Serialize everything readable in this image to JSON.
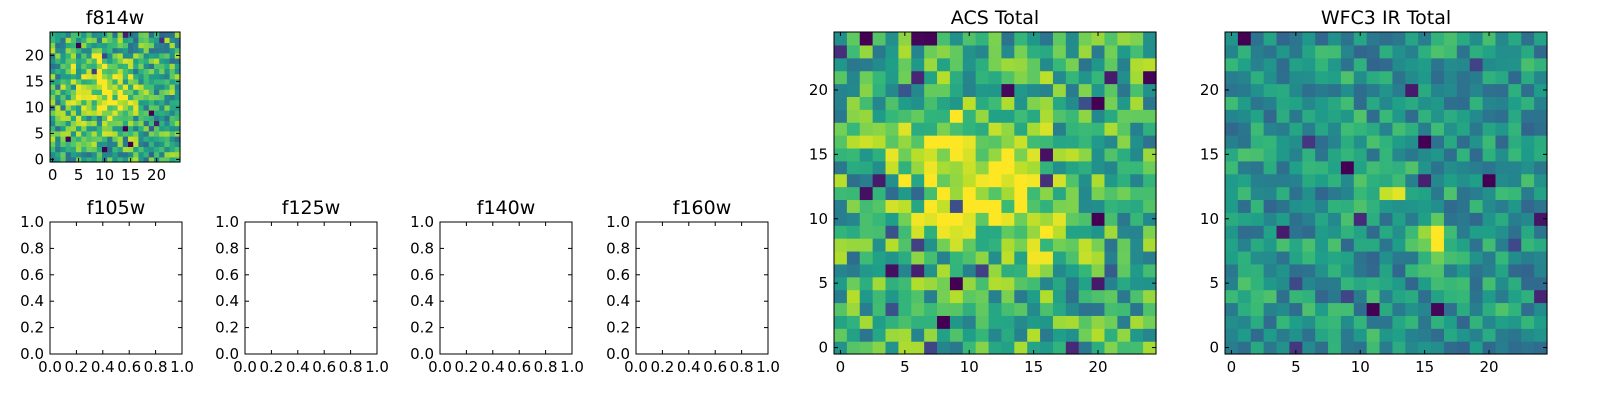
{
  "chart_data": [
    {
      "type": "heatmap",
      "title": "f814w",
      "xlim": [
        -0.5,
        24.5
      ],
      "ylim": [
        -0.5,
        24.5
      ],
      "xticks": [
        0,
        5,
        10,
        15,
        20
      ],
      "yticks": [
        0,
        5,
        10,
        15,
        20
      ],
      "grid_size": [
        25,
        25
      ],
      "seed": 11,
      "base": 0.62,
      "noise": 0.28,
      "features": [
        [
          11,
          12,
          4,
          0.28
        ],
        [
          7,
          17,
          3,
          0.15
        ]
      ],
      "colormap": "viridis"
    },
    {
      "type": "heatmap",
      "title": "ACS Total",
      "xlim": [
        -0.5,
        24.5
      ],
      "ylim": [
        -0.5,
        24.5
      ],
      "xticks": [
        0,
        5,
        10,
        15,
        20
      ],
      "yticks": [
        0,
        5,
        10,
        15,
        20
      ],
      "grid_size": [
        25,
        25
      ],
      "seed": 29,
      "base": 0.64,
      "noise": 0.26,
      "features": [
        [
          9,
          13,
          3.5,
          0.24
        ],
        [
          12,
          14,
          3,
          0.18
        ],
        [
          16,
          9,
          2,
          0.15
        ],
        [
          5,
          17,
          2,
          0.12
        ]
      ],
      "colormap": "viridis"
    },
    {
      "type": "heatmap",
      "title": "WFC3 IR Total",
      "xlim": [
        -0.5,
        24.5
      ],
      "ylim": [
        -0.5,
        24.5
      ],
      "xticks": [
        0,
        5,
        10,
        15,
        20
      ],
      "yticks": [
        0,
        5,
        10,
        15,
        20
      ],
      "grid_size": [
        25,
        25
      ],
      "seed": 53,
      "base": 0.52,
      "noise": 0.2,
      "features": [
        [
          15.5,
          8.5,
          1.0,
          0.45
        ],
        [
          12.5,
          12.5,
          1.0,
          0.35
        ]
      ],
      "colormap": "viridis"
    },
    {
      "type": "empty",
      "title": "f105w",
      "xlim": [
        0,
        1
      ],
      "ylim": [
        0,
        1
      ],
      "xticks": [
        "0.0",
        "0.2",
        "0.4",
        "0.6",
        "0.8",
        "1.0"
      ],
      "yticks": [
        "0.0",
        "0.2",
        "0.4",
        "0.6",
        "0.8",
        "1.0"
      ]
    },
    {
      "type": "empty",
      "title": "f125w",
      "xlim": [
        0,
        1
      ],
      "ylim": [
        0,
        1
      ],
      "xticks": [
        "0.0",
        "0.2",
        "0.4",
        "0.6",
        "0.8",
        "1.0"
      ],
      "yticks": [
        "0.0",
        "0.2",
        "0.4",
        "0.6",
        "0.8",
        "1.0"
      ]
    },
    {
      "type": "empty",
      "title": "f140w",
      "xlim": [
        0,
        1
      ],
      "ylim": [
        0,
        1
      ],
      "xticks": [
        "0.0",
        "0.2",
        "0.4",
        "0.6",
        "0.8",
        "1.0"
      ],
      "yticks": [
        "0.0",
        "0.2",
        "0.4",
        "0.6",
        "0.8",
        "1.0"
      ]
    },
    {
      "type": "empty",
      "title": "f160w",
      "xlim": [
        0,
        1
      ],
      "ylim": [
        0,
        1
      ],
      "xticks": [
        "0.0",
        "0.2",
        "0.4",
        "0.6",
        "0.8",
        "1.0"
      ],
      "yticks": [
        "0.0",
        "0.2",
        "0.4",
        "0.6",
        "0.8",
        "1.0"
      ]
    }
  ]
}
